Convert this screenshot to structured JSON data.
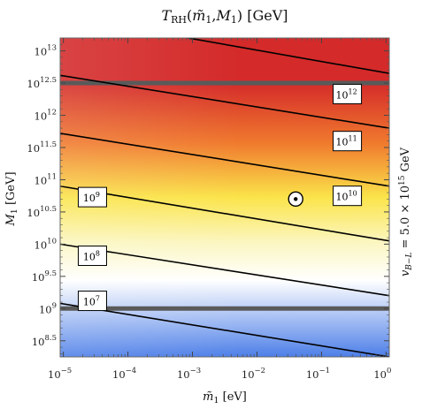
{
  "chart_data": {
    "type": "heatmap",
    "title": "T_RH(m̃1, M1) [GeV]",
    "xlabel": "m̃1 [eV]",
    "ylabel": "M1 [GeV]",
    "side_label": "v_{B−L} = 5.0 × 10^15 GeV",
    "x_scale": "log10",
    "y_scale": "log10",
    "xlim_log10": [
      -5.05,
      0.05
    ],
    "ylim_log10": [
      8.25,
      13.2
    ],
    "x_ticks": [
      {
        "exp": "−5",
        "value": -5
      },
      {
        "exp": "−4",
        "value": -4
      },
      {
        "exp": "−3",
        "value": -3
      },
      {
        "exp": "−2",
        "value": -2
      },
      {
        "exp": "−1",
        "value": -1
      },
      {
        "exp": "0",
        "value": 0
      }
    ],
    "y_ticks": [
      {
        "exp": "8.5",
        "value": 8.5
      },
      {
        "exp": "9",
        "value": 9
      },
      {
        "exp": "9.5",
        "value": 9.5
      },
      {
        "exp": "10",
        "value": 10
      },
      {
        "exp": "10.5",
        "value": 10.5
      },
      {
        "exp": "11",
        "value": 11
      },
      {
        "exp": "11.5",
        "value": 11.5
      },
      {
        "exp": "12",
        "value": 12
      },
      {
        "exp": "12.5",
        "value": 12.5
      },
      {
        "exp": "13",
        "value": 13
      }
    ],
    "tick_base": "10",
    "contours": [
      {
        "level_exp": "7",
        "line": [
          [
            -5.05,
            9.08
          ],
          [
            0.05,
            8.25
          ]
        ],
        "label_at": [
          -4.55,
          9.12
        ]
      },
      {
        "level_exp": "8",
        "line": [
          [
            -5.05,
            10.0
          ],
          [
            0.05,
            9.2
          ]
        ],
        "label_at": [
          -4.55,
          9.82
        ]
      },
      {
        "level_exp": "9",
        "line": [
          [
            -5.05,
            10.9
          ],
          [
            0.05,
            10.05
          ]
        ],
        "label_at": [
          -4.55,
          10.73
        ]
      },
      {
        "level_exp": "10",
        "line": [
          [
            -5.05,
            11.72
          ],
          [
            0.05,
            10.9
          ]
        ],
        "label_at": [
          -0.6,
          10.75
        ]
      },
      {
        "level_exp": "11",
        "line": [
          [
            -5.05,
            12.62
          ],
          [
            0.05,
            11.8
          ]
        ],
        "label_at": [
          -0.6,
          11.6
        ]
      },
      {
        "level_exp": "12",
        "line": [
          [
            -5.05,
            13.55
          ],
          [
            0.05,
            12.65
          ]
        ],
        "label_at": [
          -0.6,
          12.33
        ]
      },
      {
        "level_exp": "",
        "line": [
          [
            -3.2,
            13.85
          ],
          [
            0.05,
            13.3
          ]
        ],
        "label_at": null
      }
    ],
    "horizontal_bands": [
      9.0,
      12.5
    ],
    "marker": {
      "x": -1.4,
      "y": 10.7,
      "symbol": "circled-dot"
    },
    "colors": {
      "top": "#d42a2a",
      "upper": "#f07a2e",
      "middle": "#fbe44a",
      "pale": "#fbf6c0",
      "white": "#ffffff",
      "bottom": "#4d7fe8",
      "band": "#5a5a5a",
      "contour": "#000000"
    }
  }
}
